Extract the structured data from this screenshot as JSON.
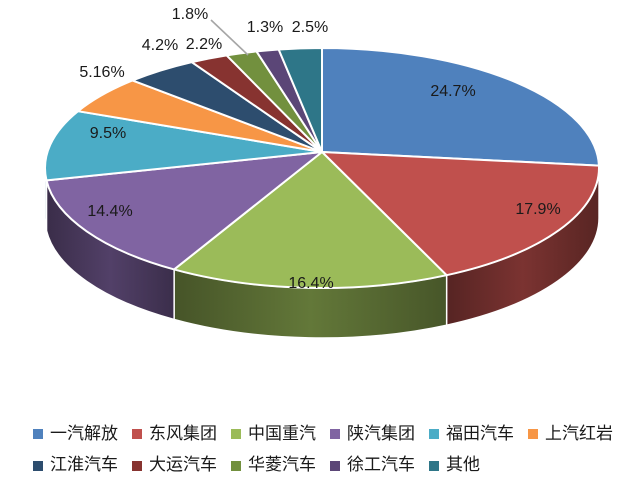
{
  "chart_data": {
    "type": "pie",
    "style": "pie-3d",
    "title": "",
    "legend_position": "bottom",
    "background": "#FFFFFF",
    "label_color": "#1A1A1A",
    "leader_line_color": "#A6A6A6",
    "slices": [
      {
        "label": "一汽解放",
        "value": 24.7,
        "display": "24.7%",
        "color": "#4F81BD"
      },
      {
        "label": "东风集团",
        "value": 17.9,
        "display": "17.9%",
        "color": "#C0504D"
      },
      {
        "label": "中国重汽",
        "value": 16.4,
        "display": "16.4%",
        "color": "#9BBB59"
      },
      {
        "label": "陕汽集团",
        "value": 14.4,
        "display": "14.4%",
        "color": "#8064A2"
      },
      {
        "label": "福田汽车",
        "value": 9.5,
        "display": "9.5%",
        "color": "#4BACC6"
      },
      {
        "label": "上汽红岩",
        "value": 5.16,
        "display": "5.16%",
        "color": "#F79646"
      },
      {
        "label": "江淮汽车",
        "value": 4.2,
        "display": "4.2%",
        "color": "#2D4D6E"
      },
      {
        "label": "大运汽车",
        "value": 2.2,
        "display": "2.2%",
        "color": "#873330"
      },
      {
        "label": "华菱汽车",
        "value": 1.8,
        "display": "1.8%",
        "color": "#72903E"
      },
      {
        "label": "徐工汽车",
        "value": 1.3,
        "display": "1.3%",
        "color": "#5B4677"
      },
      {
        "label": "其他",
        "value": 2.5,
        "display": "2.5%",
        "color": "#2E7688"
      }
    ]
  }
}
